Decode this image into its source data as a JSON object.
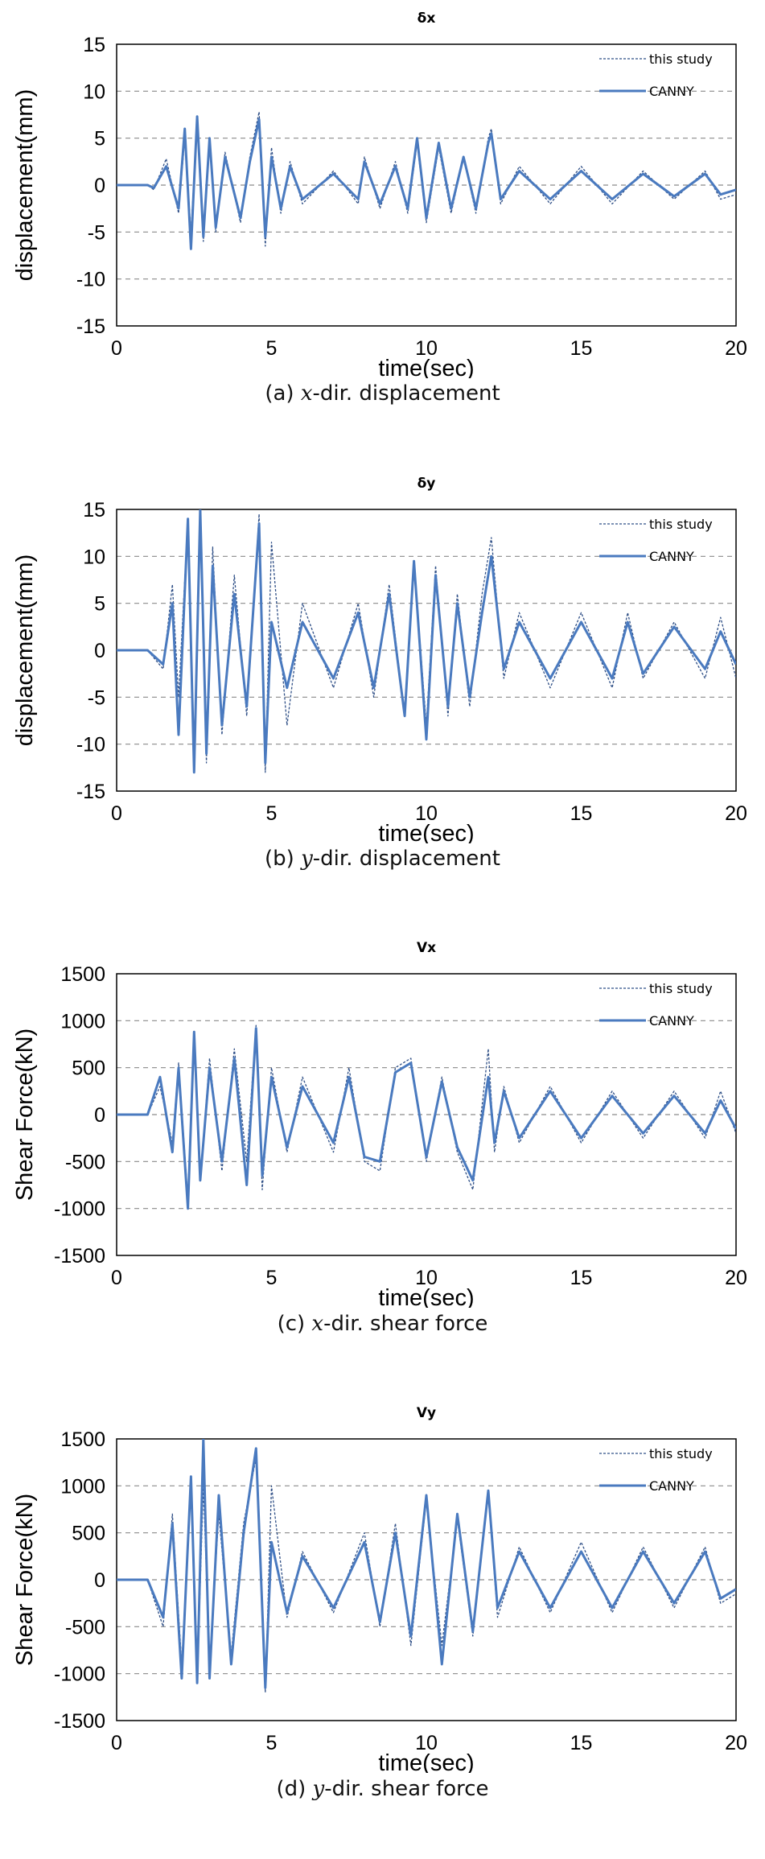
{
  "chart_data": [
    {
      "type": "line",
      "title": "δx",
      "xlabel": "time(sec)",
      "ylabel": "displacement(mm)",
      "xlim": [
        0,
        20
      ],
      "ylim": [
        -15,
        15
      ],
      "x_ticks": [
        "0",
        "5",
        "10",
        "15",
        "20"
      ],
      "y_ticks": [
        "15",
        "10",
        "5",
        "0",
        "-5",
        "-10",
        "-15"
      ],
      "grid": "horizontal dashed",
      "legend_position": "top-right",
      "caption_prefix": "(a) ",
      "caption_var": "x",
      "caption_suffix": "-dir. displacement",
      "series": [
        {
          "name": "this study",
          "style": "dotted",
          "color": "#2f4f86",
          "x": [
            0,
            1,
            1.2,
            1.6,
            2,
            2.2,
            2.4,
            2.6,
            2.8,
            3,
            3.2,
            3.5,
            4,
            4.3,
            4.6,
            4.8,
            5,
            5.3,
            5.6,
            6,
            7,
            7.8,
            8,
            8.5,
            9,
            9.4,
            9.7,
            10,
            10.4,
            10.8,
            11.2,
            11.6,
            12,
            12.1,
            12.4,
            13,
            14,
            15,
            16,
            17,
            18,
            19,
            19.5,
            20
          ],
          "y": [
            0,
            0,
            -0.5,
            2.8,
            -3,
            5,
            -5,
            6.8,
            -6,
            4.5,
            -5,
            3.5,
            -4,
            3,
            7.8,
            -6.5,
            4,
            -3,
            2.5,
            -2,
            1.5,
            -2,
            3,
            -2.5,
            2.5,
            -3,
            4.5,
            -4,
            4,
            -3,
            3,
            -3,
            5,
            6,
            -2,
            2,
            -2,
            2,
            -2,
            1.5,
            -1.5,
            1.5,
            -1.5,
            -1
          ]
        },
        {
          "name": "CANNY",
          "style": "solid",
          "color": "#4a7abf",
          "x": [
            0,
            1,
            1.2,
            1.6,
            2,
            2.2,
            2.4,
            2.6,
            2.8,
            3,
            3.2,
            3.5,
            4,
            4.3,
            4.6,
            4.8,
            5,
            5.3,
            5.6,
            6,
            7,
            7.8,
            8,
            8.5,
            9,
            9.4,
            9.7,
            10,
            10.4,
            10.8,
            11.2,
            11.6,
            12,
            12.1,
            12.4,
            13,
            14,
            15,
            16,
            17,
            18,
            19,
            19.5,
            20
          ],
          "y": [
            0,
            0,
            -0.3,
            2,
            -2.5,
            6,
            -6.8,
            7.3,
            -5.5,
            5,
            -4.5,
            3,
            -3.5,
            2.5,
            7,
            -5.5,
            3,
            -2.5,
            2,
            -1.5,
            1.2,
            -1.5,
            2.5,
            -2,
            2,
            -2.5,
            5,
            -3.5,
            4.5,
            -2.5,
            3,
            -2.5,
            4.5,
            5.5,
            -1.5,
            1.5,
            -1.5,
            1.5,
            -1.5,
            1.2,
            -1.2,
            1.2,
            -1,
            -0.5
          ]
        }
      ]
    },
    {
      "type": "line",
      "title": "δy",
      "xlabel": "time(sec)",
      "ylabel": "displacement(mm)",
      "xlim": [
        0,
        20
      ],
      "ylim": [
        -15,
        15
      ],
      "x_ticks": [
        "0",
        "5",
        "10",
        "15",
        "20"
      ],
      "y_ticks": [
        "15",
        "10",
        "5",
        "0",
        "-5",
        "-10",
        "-15"
      ],
      "grid": "horizontal dashed",
      "legend_position": "top-right",
      "caption_prefix": "(b) ",
      "caption_var": "y",
      "caption_suffix": "-dir. displacement",
      "series": [
        {
          "name": "this study",
          "style": "dotted",
          "color": "#2f4f86",
          "x": [
            0,
            1,
            1.5,
            1.8,
            2,
            2.3,
            2.5,
            2.7,
            2.9,
            3.1,
            3.4,
            3.8,
            4.2,
            4.6,
            4.8,
            5,
            5.5,
            6,
            7,
            7.8,
            8.3,
            8.8,
            9.3,
            9.6,
            10,
            10.3,
            10.7,
            11,
            11.4,
            11.8,
            12.1,
            12.5,
            13,
            14,
            15,
            16,
            16.5,
            17,
            18,
            19,
            19.5,
            20
          ],
          "y": [
            0,
            0,
            -2,
            7,
            -5,
            14,
            -11,
            15,
            -12,
            11,
            -9,
            8,
            -7,
            14.5,
            -13,
            11.5,
            -8,
            5,
            -4,
            5,
            -5,
            7,
            -7,
            9.5,
            -8,
            9,
            -7,
            6,
            -6,
            6,
            12,
            -3,
            4,
            -4,
            4,
            -4,
            4,
            -3,
            3,
            -3,
            3.5,
            -3
          ]
        },
        {
          "name": "CANNY",
          "style": "solid",
          "color": "#4a7abf",
          "x": [
            0,
            1,
            1.5,
            1.8,
            2,
            2.3,
            2.5,
            2.7,
            2.9,
            3.1,
            3.4,
            3.8,
            4.2,
            4.6,
            4.8,
            5,
            5.5,
            6,
            7,
            7.8,
            8.3,
            8.8,
            9.3,
            9.6,
            10,
            10.3,
            10.7,
            11,
            11.4,
            11.8,
            12.1,
            12.5,
            13,
            14,
            15,
            16,
            16.5,
            17,
            18,
            19,
            19.5,
            20
          ],
          "y": [
            0,
            0,
            -1.5,
            5,
            -9,
            14,
            -13,
            15,
            -11,
            9,
            -8,
            6,
            -6,
            13.5,
            -12,
            3,
            -4,
            3,
            -3,
            4,
            -4,
            6,
            -7,
            9.5,
            -9.5,
            8,
            -6,
            5,
            -5,
            4,
            10,
            -2,
            3,
            -3,
            3,
            -3,
            3,
            -2.5,
            2.5,
            -2,
            2,
            -1.5
          ]
        }
      ]
    },
    {
      "type": "line",
      "title": "Vx",
      "xlabel": "time(sec)",
      "ylabel": "Shear Force(kN)",
      "xlim": [
        0,
        20
      ],
      "ylim": [
        -1500,
        1500
      ],
      "x_ticks": [
        "0",
        "5",
        "10",
        "15",
        "20"
      ],
      "y_ticks": [
        "1500",
        "1000",
        "500",
        "0",
        "-500",
        "-1000",
        "-1500"
      ],
      "grid": "horizontal dashed",
      "legend_position": "top-right",
      "caption_prefix": "(c) ",
      "caption_var": "x",
      "caption_suffix": "-dir. shear force",
      "series": [
        {
          "name": "this study",
          "style": "dotted",
          "color": "#2f4f86",
          "x": [
            0,
            1,
            1.4,
            1.8,
            2,
            2.3,
            2.5,
            2.7,
            3,
            3.4,
            3.8,
            4.2,
            4.5,
            4.7,
            5,
            5.5,
            6,
            7,
            7.5,
            8,
            8.5,
            9,
            9.5,
            10,
            10.5,
            11,
            11.5,
            12,
            12.2,
            12.5,
            13,
            14,
            15,
            16,
            17,
            18,
            19,
            19.5,
            20
          ],
          "y": [
            0,
            0,
            300,
            -300,
            550,
            -900,
            800,
            -700,
            600,
            -600,
            700,
            -500,
            950,
            -800,
            500,
            -400,
            400,
            -400,
            500,
            -500,
            -600,
            500,
            600,
            -500,
            400,
            -400,
            -800,
            700,
            -400,
            300,
            -300,
            300,
            -300,
            250,
            -250,
            250,
            -250,
            250,
            -200
          ]
        },
        {
          "name": "CANNY",
          "style": "solid",
          "color": "#4a7abf",
          "x": [
            0,
            1,
            1.4,
            1.8,
            2,
            2.3,
            2.5,
            2.7,
            3,
            3.4,
            3.8,
            4.2,
            4.5,
            4.7,
            5,
            5.5,
            6,
            7,
            7.5,
            8,
            8.5,
            9,
            9.5,
            10,
            10.5,
            11,
            11.5,
            12,
            12.2,
            12.5,
            13,
            14,
            15,
            16,
            17,
            18,
            19,
            19.5,
            20
          ],
          "y": [
            0,
            0,
            400,
            -400,
            500,
            -1000,
            880,
            -700,
            500,
            -500,
            600,
            -750,
            920,
            -650,
            400,
            -350,
            300,
            -300,
            400,
            -450,
            -500,
            450,
            550,
            -450,
            350,
            -350,
            -700,
            400,
            -300,
            250,
            -250,
            250,
            -250,
            200,
            -200,
            200,
            -200,
            150,
            -150
          ]
        }
      ]
    },
    {
      "type": "line",
      "title": "Vy",
      "xlabel": "time(sec)",
      "ylabel": "Shear Force(kN)",
      "xlim": [
        0,
        20
      ],
      "ylim": [
        -1500,
        1500
      ],
      "x_ticks": [
        "0",
        "5",
        "10",
        "15",
        "20"
      ],
      "y_ticks": [
        "1500",
        "1000",
        "500",
        "0",
        "-500",
        "-1000",
        "-1500"
      ],
      "grid": "horizontal dashed",
      "legend_position": "top-right",
      "caption_prefix": "(d) ",
      "caption_var": "y",
      "caption_suffix": "-dir. shear force",
      "series": [
        {
          "name": "this study",
          "style": "dotted",
          "color": "#2f4f86",
          "x": [
            0,
            1,
            1.5,
            1.8,
            2.1,
            2.4,
            2.6,
            2.8,
            3,
            3.3,
            3.7,
            4.1,
            4.5,
            4.8,
            5,
            5.5,
            6,
            7,
            8,
            8.5,
            9,
            9.5,
            10,
            10.5,
            11,
            11.5,
            12,
            12.3,
            13,
            14,
            15,
            16,
            17,
            18,
            19,
            19.5,
            20
          ],
          "y": [
            0,
            0,
            -500,
            700,
            -900,
            1050,
            -1100,
            1000,
            -900,
            700,
            -800,
            600,
            1300,
            -1200,
            1000,
            -400,
            300,
            -350,
            500,
            -500,
            600,
            -700,
            850,
            -700,
            650,
            -600,
            950,
            -400,
            350,
            -350,
            400,
            -350,
            350,
            -300,
            350,
            -250,
            -150
          ]
        },
        {
          "name": "CANNY",
          "style": "solid",
          "color": "#4a7abf",
          "x": [
            0,
            1,
            1.5,
            1.8,
            2.1,
            2.4,
            2.6,
            2.8,
            3,
            3.3,
            3.7,
            4.1,
            4.5,
            4.8,
            5,
            5.5,
            6,
            7,
            8,
            8.5,
            9,
            9.5,
            10,
            10.5,
            11,
            11.5,
            12,
            12.3,
            13,
            14,
            15,
            16,
            17,
            18,
            19,
            19.5,
            20
          ],
          "y": [
            0,
            0,
            -400,
            600,
            -1050,
            1100,
            -1100,
            1500,
            -1050,
            900,
            -900,
            500,
            1400,
            -1150,
            400,
            -350,
            250,
            -300,
            400,
            -450,
            500,
            -600,
            900,
            -900,
            700,
            -550,
            950,
            -300,
            300,
            -300,
            300,
            -300,
            300,
            -250,
            300,
            -200,
            -100
          ]
        }
      ]
    }
  ]
}
